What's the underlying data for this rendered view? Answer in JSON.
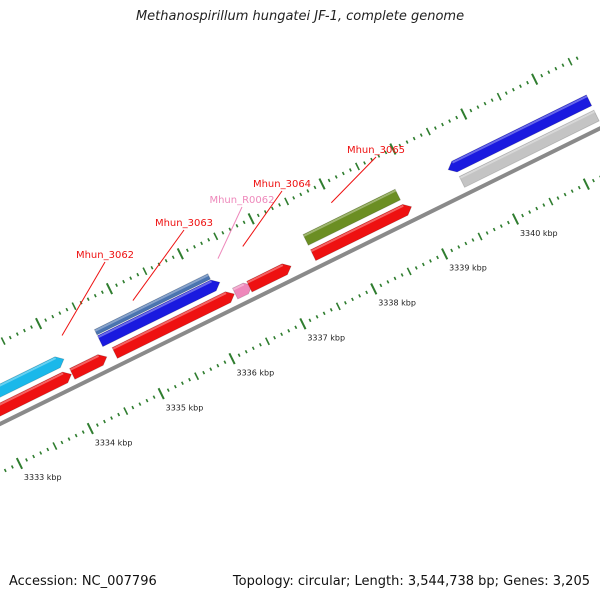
{
  "title": "Methanospirillum hungatei JF-1, complete genome",
  "footer": {
    "accession": "Accession: NC_007796",
    "summary": "Topology: circular; Length: 3,544,738 bp; Genes: 3,205"
  },
  "colors": {
    "backbone": "#8a8a8a",
    "tick": "#2f7d2f",
    "cds_red": "#ee1111",
    "blue": "#1a1adf",
    "cyan": "#1ab8ea",
    "olive": "#6b8e23",
    "grey": "#c4c4c4",
    "rrna_pink": "#ee88bb",
    "steelblue": "#4a74b0"
  },
  "scale": {
    "unit": "kbp",
    "labels": [
      {
        "kbp": 3333,
        "text": "3333 kbp"
      },
      {
        "kbp": 3334,
        "text": "3334 kbp"
      },
      {
        "kbp": 3335,
        "text": "3335 kbp"
      },
      {
        "kbp": 3336,
        "text": "3336 kbp"
      },
      {
        "kbp": 3337,
        "text": "3337 kbp"
      },
      {
        "kbp": 3338,
        "text": "3338 kbp"
      },
      {
        "kbp": 3339,
        "text": "3339 kbp"
      },
      {
        "kbp": 3340,
        "text": "3340 kbp"
      }
    ]
  },
  "features": [
    {
      "name": "cds-cyan",
      "track": "fwd2",
      "start_kbp": 3331.8,
      "end_kbp": 3334.0,
      "color": "cyan",
      "arrow": "right"
    },
    {
      "name": "cds-red-left",
      "track": "fwd1",
      "start_kbp": 3331.8,
      "end_kbp": 3334.0,
      "color": "cds_red",
      "arrow": "right"
    },
    {
      "name": "cds-red-3062",
      "track": "fwd1",
      "start_kbp": 3334.1,
      "end_kbp": 3334.5,
      "color": "cds_red",
      "arrow": "right"
    },
    {
      "name": "cds-steelblue",
      "track": "fwd3",
      "start_kbp": 3334.6,
      "end_kbp": 3336.2,
      "color": "steelblue",
      "arrow": "none"
    },
    {
      "name": "cds-blue-3063",
      "track": "fwd2",
      "start_kbp": 3334.6,
      "end_kbp": 3336.2,
      "color": "blue",
      "arrow": "right"
    },
    {
      "name": "cds-red-3063",
      "track": "fwd1",
      "start_kbp": 3334.7,
      "end_kbp": 3336.3,
      "color": "cds_red",
      "arrow": "right"
    },
    {
      "name": "rrna-R0062",
      "track": "fwd1",
      "start_kbp": 3336.4,
      "end_kbp": 3336.55,
      "color": "rrna_pink",
      "arrow": "right"
    },
    {
      "name": "cds-red-3064",
      "track": "fwd1",
      "start_kbp": 3336.6,
      "end_kbp": 3337.1,
      "color": "cds_red",
      "arrow": "right"
    },
    {
      "name": "cds-olive-3065",
      "track": "fwd2",
      "start_kbp": 3337.5,
      "end_kbp": 3338.8,
      "color": "olive",
      "arrow": "none"
    },
    {
      "name": "cds-red-3065",
      "track": "fwd1",
      "start_kbp": 3337.5,
      "end_kbp": 3338.8,
      "color": "cds_red",
      "arrow": "right"
    },
    {
      "name": "cds-blue-right",
      "track": "fwd2",
      "start_kbp": 3339.6,
      "end_kbp": 3341.5,
      "color": "blue",
      "arrow": "left"
    },
    {
      "name": "cds-grey-right",
      "track": "fwd1",
      "start_kbp": 3339.6,
      "end_kbp": 3341.5,
      "color": "grey",
      "arrow": "none"
    }
  ],
  "gene_labels": [
    {
      "text": "Mhun_3062",
      "target_kbp": 3334.2,
      "color": "cds_red"
    },
    {
      "text": "Mhun_3063",
      "target_kbp": 3335.2,
      "color": "cds_red"
    },
    {
      "text": "Mhun_R0062",
      "target_kbp": 3336.4,
      "color": "rrna_pink"
    },
    {
      "text": "Mhun_3064",
      "target_kbp": 3336.75,
      "color": "cds_red"
    },
    {
      "text": "Mhun_3065",
      "target_kbp": 3338.0,
      "color": "cds_red"
    }
  ]
}
